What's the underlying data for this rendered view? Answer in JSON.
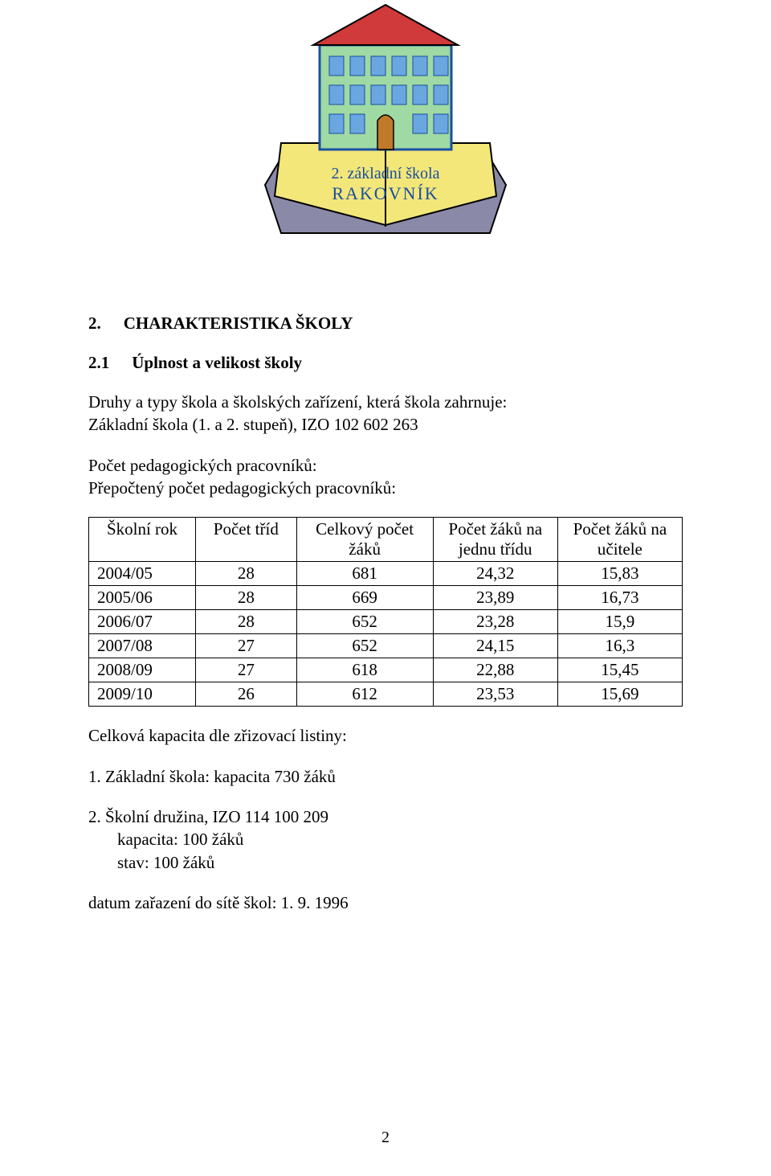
{
  "logo": {
    "building_fill": "#9fd9a3",
    "building_stroke": "#1a4fa0",
    "roof_fill": "#d03a3a",
    "window_fill": "#6aa6e0",
    "door_fill": "#c07a2a",
    "book_page_fill": "#f3e77a",
    "book_side_fill": "#8a8aa8",
    "text_line1": "2. základní škola",
    "text_line2": "RAKOVNÍK",
    "text_fill": "#1a4fa0"
  },
  "heading": {
    "num": "2.",
    "title": "CHARAKTERISTIKA  ŠKOLY"
  },
  "subheading": {
    "num": "2.1",
    "title": "Úplnost a velikost školy"
  },
  "intro": {
    "line1_prefix": "Druhy a typy škola a školských zařízení, která ",
    "line1_mid": "škola zahrnuje:",
    "line2": "Základní škola (1. a 2. stupeň), IZO 102 602 263"
  },
  "counts": {
    "line1": "Počet pedagogických pracovníků:",
    "line2": "Přepočtený počet pedagogických pracovníků:"
  },
  "table": {
    "columns": [
      "Školní rok",
      "Počet tříd",
      "Celkový počet\nžáků",
      "Počet žáků na\njednu třídu",
      "Počet žáků na\nučitele"
    ],
    "col_widths_pct": [
      18,
      17,
      23,
      21,
      21
    ],
    "rows": [
      [
        "2004/05",
        "28",
        "681",
        "24,32",
        "15,83"
      ],
      [
        "2005/06",
        "28",
        "669",
        "23,89",
        "16,73"
      ],
      [
        "2006/07",
        "28",
        "652",
        "23,28",
        "15,9"
      ],
      [
        "2007/08",
        "27",
        "652",
        "24,15",
        "16,3"
      ],
      [
        "2008/09",
        "27",
        "618",
        "22,88",
        "15,45"
      ],
      [
        "2009/10",
        "26",
        "612",
        "23,53",
        "15,69"
      ]
    ]
  },
  "capacity_heading": "Celková kapacita dle zřizovací listiny:",
  "capacity_items": {
    "item1": "1. Základní škola: kapacita 730 žáků",
    "item2_line1": "2. Školní družina, IZO 114 100 209",
    "item2_line2": "kapacita: 100 žáků",
    "item2_line3": "stav: 100 žáků"
  },
  "date_line": "datum zařazení do sítě škol: 1. 9. 1996",
  "page_number": "2"
}
